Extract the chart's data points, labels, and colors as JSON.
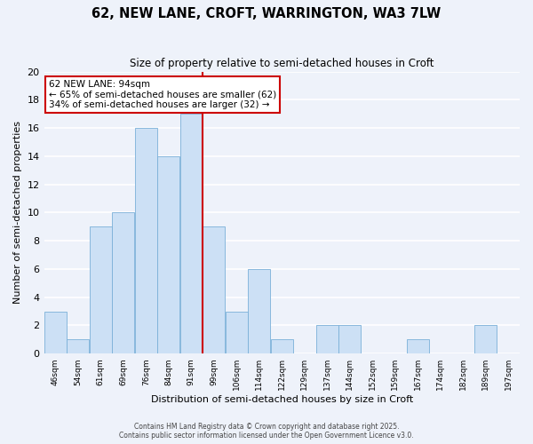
{
  "title": "62, NEW LANE, CROFT, WARRINGTON, WA3 7LW",
  "subtitle": "Size of property relative to semi-detached houses in Croft",
  "xlabel": "Distribution of semi-detached houses by size in Croft",
  "ylabel": "Number of semi-detached properties",
  "bin_labels": [
    "46sqm",
    "54sqm",
    "61sqm",
    "69sqm",
    "76sqm",
    "84sqm",
    "91sqm",
    "99sqm",
    "106sqm",
    "114sqm",
    "122sqm",
    "129sqm",
    "137sqm",
    "144sqm",
    "152sqm",
    "159sqm",
    "167sqm",
    "174sqm",
    "182sqm",
    "189sqm",
    "197sqm"
  ],
  "counts": [
    3,
    1,
    9,
    10,
    16,
    14,
    17,
    9,
    3,
    6,
    1,
    0,
    2,
    2,
    0,
    0,
    1,
    0,
    0,
    2,
    0
  ],
  "bar_color": "#cce0f5",
  "bar_edge_color": "#7ab0d8",
  "background_color": "#eef2fa",
  "grid_color": "#ffffff",
  "red_line_index": 6,
  "red_line_color": "#cc0000",
  "annotation_title": "62 NEW LANE: 94sqm",
  "annotation_line1": "← 65% of semi-detached houses are smaller (62)",
  "annotation_line2": "34% of semi-detached houses are larger (32) →",
  "annotation_box_color": "#ffffff",
  "annotation_box_edge": "#cc0000",
  "ylim": [
    0,
    20
  ],
  "yticks": [
    0,
    2,
    4,
    6,
    8,
    10,
    12,
    14,
    16,
    18,
    20
  ],
  "footer1": "Contains HM Land Registry data © Crown copyright and database right 2025.",
  "footer2": "Contains public sector information licensed under the Open Government Licence v3.0."
}
